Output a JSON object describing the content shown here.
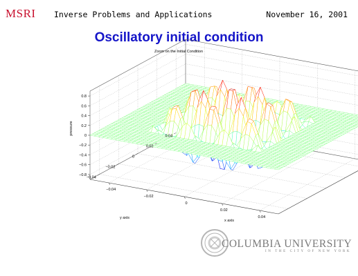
{
  "header": {
    "logo": "MSRI",
    "talk_title": "Inverse Problems and Applications",
    "date": "November 16, 2001"
  },
  "slide_title": "Oscillatory initial condition",
  "chart_data": {
    "type": "surface",
    "title": "Zoom on the Initial Condition",
    "xlabel": "x axis",
    "ylabel": "y axis",
    "zlabel": "pressure",
    "xlim": [
      -0.05,
      0.05
    ],
    "ylim": [
      -0.05,
      0.05
    ],
    "zlim": [
      -0.9,
      0.9
    ],
    "x_ticks": [
      -0.04,
      -0.02,
      0,
      0.02,
      0.04
    ],
    "y_ticks": [
      -0.04,
      -0.02,
      0,
      0.02,
      0.04
    ],
    "z_ticks": [
      -0.8,
      -0.6,
      -0.4,
      -0.2,
      0,
      0.2,
      0.4,
      0.6,
      0.8
    ],
    "x_tick_labels": [
      "−0.04",
      "−0.02",
      "0",
      "0.02",
      "0.04"
    ],
    "y_tick_labels": [
      "−0.04",
      "−0.02",
      "0",
      "0.02",
      "0.04"
    ],
    "z_tick_labels": [
      "−0.8",
      "−0.6",
      "−0.4",
      "−0.2",
      "0",
      "0.2",
      "0.4",
      "0.6",
      "0.8"
    ],
    "peak_amplitude": 0.85,
    "support_half_width": 0.03,
    "oscillation_period": 0.02,
    "grid": true,
    "colormap": "jet"
  },
  "footer": {
    "university": "COLUMBIA UNIVERSITY",
    "city_line": "IN THE CITY OF NEW YORK"
  }
}
